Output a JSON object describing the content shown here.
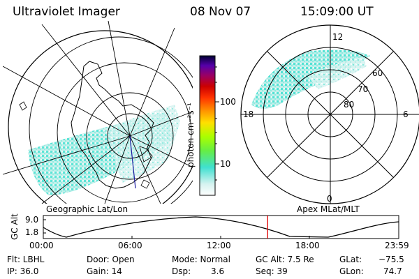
{
  "header": {
    "instrument": "Ultraviolet Imager",
    "date": "08 Nov 07",
    "time": "15:09:00 UT"
  },
  "left_panel": {
    "caption": "Geographic Lat/Lon"
  },
  "right_panel": {
    "caption": "Apex MLat/MLT",
    "mlt_labels": {
      "top": "12",
      "bottom": "0",
      "left": "18",
      "right": "6"
    },
    "lat_labels": [
      "60",
      "70",
      "80"
    ]
  },
  "colorbar": {
    "label": "photon cm⁻²s⁻¹",
    "ticks": [
      "100",
      "10"
    ]
  },
  "altitude_plot": {
    "ylabel": "GC Alt",
    "y_ticks": [
      "9.0",
      "1.8"
    ],
    "x_ticks": [
      "00:00",
      "06:00",
      "12:00",
      "18:00",
      "23:59"
    ],
    "current_marker_hour": 15.15
  },
  "footer": {
    "filter": "Flt: LBHL",
    "ip": "IP: 36.0",
    "door": "Door: Open",
    "gain": "Gain: 14",
    "mode": "Mode: Normal",
    "dsp_label": "Dsp:",
    "dsp_value": "3.6",
    "gc_alt": "GC Alt: 7.5 Re",
    "seq": "Seq: 39",
    "glat_label": "GLat:",
    "glat_value": "−75.5",
    "glon_label": "GLon:",
    "glon_value": "74.7"
  },
  "colors": {
    "aurora": "#40e0d0",
    "marker": "#e00000"
  }
}
